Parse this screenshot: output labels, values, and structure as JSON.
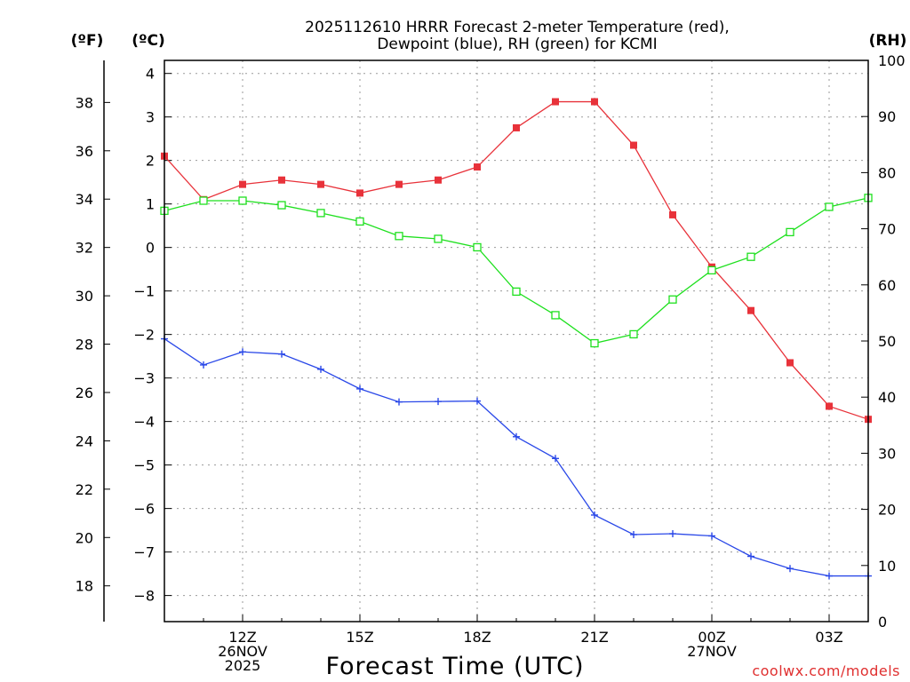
{
  "title_line1": "2025112610 HRRR Forecast 2-meter Temperature (red),",
  "title_line2": "Dewpoint (blue), RH (green) for KCMI",
  "unit_f": "(ºF)",
  "unit_c": "(ºC)",
  "unit_rh": "(RH)",
  "xlabel": "Forecast Time (UTC)",
  "credit": "coolwx.com/models",
  "colors": {
    "temperature": "#e8323a",
    "dewpoint": "#2a48e8",
    "rh": "#1ee01e",
    "grid": "#9a9a9a",
    "credit": "#e03030"
  },
  "chart_data": {
    "type": "line",
    "title": "2025112610 HRRR Forecast 2-meter Temperature (red), Dewpoint (blue), RH (green) for KCMI",
    "xlabel": "Forecast Time (UTC)",
    "x_hours_utc": [
      10,
      11,
      12,
      13,
      14,
      15,
      16,
      17,
      18,
      19,
      20,
      21,
      22,
      23,
      24,
      25,
      26,
      27,
      28
    ],
    "x_tick_labels": [
      {
        "hour": 12,
        "lines": [
          "12Z",
          "26NOV",
          "2025"
        ]
      },
      {
        "hour": 15,
        "lines": [
          "15Z"
        ]
      },
      {
        "hour": 18,
        "lines": [
          "18Z"
        ]
      },
      {
        "hour": 21,
        "lines": [
          "21Z"
        ]
      },
      {
        "hour": 24,
        "lines": [
          "00Z",
          "27NOV"
        ]
      },
      {
        "hour": 27,
        "lines": [
          "03Z"
        ]
      }
    ],
    "xlim": [
      10,
      28
    ],
    "y_left_celsius": {
      "label": "(ºC)",
      "range": [
        -8.6,
        4.3
      ],
      "ticks": [
        4,
        3,
        2,
        1,
        0,
        -1,
        -2,
        -3,
        -4,
        -5,
        -6,
        -7,
        -8
      ]
    },
    "y_left_fahrenheit": {
      "label": "(ºF)",
      "ticks": [
        38,
        36,
        34,
        32,
        30,
        28,
        26,
        24,
        22,
        20,
        18
      ]
    },
    "y_right_rh": {
      "label": "(RH)",
      "range": [
        0,
        100
      ],
      "ticks": [
        100,
        90,
        80,
        70,
        60,
        50,
        40,
        30,
        20,
        10,
        0
      ]
    },
    "series": [
      {
        "name": "Temperature",
        "units": "C",
        "axis": "left",
        "color": "red",
        "marker": "filled-square",
        "values": [
          2.1,
          1.1,
          1.45,
          1.55,
          1.45,
          1.25,
          1.45,
          1.55,
          1.85,
          2.75,
          3.35,
          3.35,
          2.35,
          0.75,
          -0.45,
          -1.45,
          -2.65,
          -3.65,
          -3.95
        ]
      },
      {
        "name": "Dewpoint",
        "units": "C",
        "axis": "left",
        "color": "blue",
        "marker": "plus",
        "values": [
          -2.1,
          -2.7,
          -2.4,
          -2.45,
          -2.8,
          -3.25,
          -3.55,
          -3.54,
          -3.53,
          -4.35,
          -4.85,
          -6.15,
          -6.6,
          -6.58,
          -6.63,
          -7.1,
          -7.38,
          -7.55,
          -7.55
        ]
      },
      {
        "name": "RH",
        "units": "%",
        "axis": "right",
        "color": "green",
        "marker": "open-square",
        "values": [
          73.2,
          75.0,
          75.0,
          74.2,
          72.8,
          71.3,
          68.7,
          68.2,
          66.7,
          58.8,
          54.6,
          49.6,
          51.2,
          57.4,
          62.6,
          65.0,
          69.4,
          73.9,
          75.5
        ]
      }
    ]
  }
}
